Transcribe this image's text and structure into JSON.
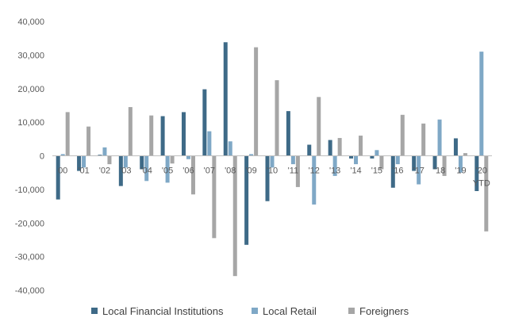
{
  "chart_data": {
    "type": "bar",
    "categories": [
      "00",
      "'01",
      "'02",
      "'03",
      "'04",
      "'05",
      "'06",
      "'07",
      "'08",
      "'09",
      "'10",
      "'11",
      "'12",
      "'13",
      "'14",
      "'15",
      "'16",
      "'17",
      "'18",
      "'19",
      "'20"
    ],
    "category_sublabels": {
      "'20": "YTD"
    },
    "series": [
      {
        "name": "Local Financial Institutions",
        "color": "#3e6a87",
        "values": [
          -13000,
          -4500,
          300,
          -9000,
          -4000,
          11800,
          13000,
          19800,
          33800,
          -26500,
          -13500,
          13300,
          3300,
          4700,
          -800,
          -800,
          -9500,
          -4500,
          -4000,
          5200,
          -10500
        ]
      },
      {
        "name": "Local Retail",
        "color": "#7fa8c6",
        "values": [
          500,
          -3500,
          2500,
          -3500,
          -7500,
          -8000,
          -1000,
          7300,
          4300,
          500,
          -3500,
          -2500,
          -14500,
          -6000,
          -2500,
          1700,
          -2500,
          -8500,
          10800,
          -5000,
          31000
        ]
      },
      {
        "name": "Foreigners",
        "color": "#a6a6a6",
        "values": [
          13000,
          8700,
          -2500,
          14500,
          12000,
          -2300,
          -11500,
          -24500,
          -35800,
          32300,
          22500,
          -9300,
          17500,
          5300,
          6000,
          -4000,
          12200,
          9600,
          -6000,
          800,
          -22500
        ]
      }
    ],
    "ylim": [
      -40000,
      40000
    ],
    "yticks": [
      -40000,
      -30000,
      -20000,
      -10000,
      0,
      10000,
      20000,
      30000,
      40000
    ],
    "ytick_labels": [
      "-40,000",
      "-30,000",
      "-20,000",
      "-10,000",
      "0",
      "10,000",
      "20,000",
      "30,000",
      "40,000"
    ],
    "grid": false,
    "legend_position": "bottom"
  }
}
